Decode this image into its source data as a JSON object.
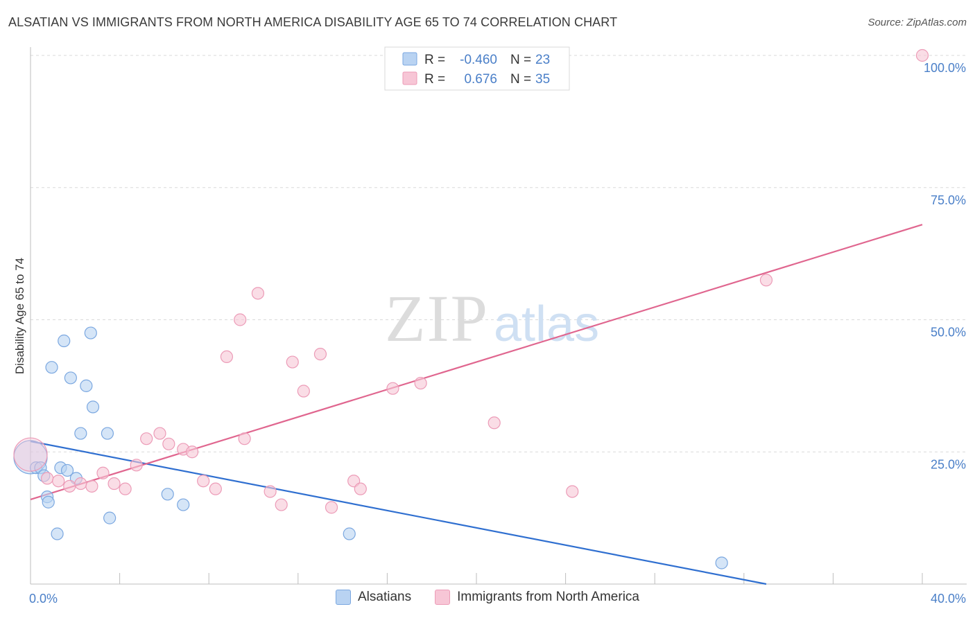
{
  "header": {
    "title": "ALSATIAN VS IMMIGRANTS FROM NORTH AMERICA DISABILITY AGE 65 TO 74 CORRELATION CHART",
    "source": "Source: ZipAtlas.com"
  },
  "watermark": {
    "zip": "ZIP",
    "atlas": "atlas"
  },
  "legend": {
    "rows": [
      {
        "r_label": "R =",
        "r_value": "-0.460",
        "n_label": "N =",
        "n_value": "23"
      },
      {
        "r_label": "R =",
        "r_value": "0.676",
        "n_label": "N =",
        "n_value": "35"
      }
    ]
  },
  "bottom_legend": {
    "series_a": "Alsatians",
    "series_b": "Immigrants from North America"
  },
  "colors": {
    "blue_fill": "#b9d3f2",
    "blue_stroke": "#7aa7e0",
    "blue_line": "#2f6fd0",
    "pink_fill": "#f7c6d6",
    "pink_stroke": "#ec9bb7",
    "pink_line": "#e0668f",
    "tick": "#4a7fc8"
  },
  "chart_data": {
    "type": "scatter",
    "title": "ALSATIAN VS IMMIGRANTS FROM NORTH AMERICA DISABILITY AGE 65 TO 74 CORRELATION CHART",
    "xlabel": "",
    "ylabel": "Disability Age 65 to 74",
    "xlim": [
      0,
      40
    ],
    "ylim": [
      0,
      100
    ],
    "x_tick_labels": [
      "0.0%",
      "40.0%"
    ],
    "y_ticks": [
      25,
      50,
      75,
      100
    ],
    "y_tick_labels": [
      "25.0%",
      "50.0%",
      "75.0%",
      "100.0%"
    ],
    "grid": true,
    "series": [
      {
        "name": "Alsatians",
        "r": -0.46,
        "n": 23,
        "trend": {
          "x": [
            0,
            33
          ],
          "y": [
            27,
            0
          ]
        },
        "points": [
          {
            "x": 0.0,
            "y": 24.0,
            "big": true
          },
          {
            "x": 0.25,
            "y": 22.0
          },
          {
            "x": 0.45,
            "y": 22.0
          },
          {
            "x": 0.6,
            "y": 20.5
          },
          {
            "x": 0.75,
            "y": 16.5
          },
          {
            "x": 0.8,
            "y": 15.5
          },
          {
            "x": 0.95,
            "y": 41.0
          },
          {
            "x": 1.2,
            "y": 9.5
          },
          {
            "x": 1.35,
            "y": 22.0
          },
          {
            "x": 1.5,
            "y": 46.0
          },
          {
            "x": 1.65,
            "y": 21.5
          },
          {
            "x": 1.8,
            "y": 39.0
          },
          {
            "x": 2.05,
            "y": 20.0
          },
          {
            "x": 2.25,
            "y": 28.5
          },
          {
            "x": 2.5,
            "y": 37.5
          },
          {
            "x": 2.7,
            "y": 47.5
          },
          {
            "x": 2.8,
            "y": 33.5
          },
          {
            "x": 3.45,
            "y": 28.5
          },
          {
            "x": 3.55,
            "y": 12.5
          },
          {
            "x": 6.15,
            "y": 17.0
          },
          {
            "x": 6.85,
            "y": 15.0
          },
          {
            "x": 14.3,
            "y": 9.5
          },
          {
            "x": 31.0,
            "y": 4.0
          }
        ]
      },
      {
        "name": "Immigrants from North America",
        "r": 0.676,
        "n": 35,
        "trend": {
          "x": [
            0,
            40
          ],
          "y": [
            16,
            68
          ]
        },
        "points": [
          {
            "x": 0.0,
            "y": 24.5,
            "big": true
          },
          {
            "x": 0.75,
            "y": 20.0
          },
          {
            "x": 1.25,
            "y": 19.5
          },
          {
            "x": 1.75,
            "y": 18.5
          },
          {
            "x": 2.25,
            "y": 19.0
          },
          {
            "x": 2.75,
            "y": 18.5
          },
          {
            "x": 3.25,
            "y": 21.0
          },
          {
            "x": 3.75,
            "y": 19.0
          },
          {
            "x": 4.25,
            "y": 18.0
          },
          {
            "x": 4.75,
            "y": 22.5
          },
          {
            "x": 5.2,
            "y": 27.5
          },
          {
            "x": 5.8,
            "y": 28.5
          },
          {
            "x": 6.2,
            "y": 26.5
          },
          {
            "x": 6.85,
            "y": 25.5
          },
          {
            "x": 7.25,
            "y": 25.0
          },
          {
            "x": 7.75,
            "y": 19.5
          },
          {
            "x": 8.3,
            "y": 18.0
          },
          {
            "x": 8.8,
            "y": 43.0
          },
          {
            "x": 9.4,
            "y": 50.0
          },
          {
            "x": 9.6,
            "y": 27.5
          },
          {
            "x": 10.2,
            "y": 55.0
          },
          {
            "x": 10.75,
            "y": 17.5
          },
          {
            "x": 11.25,
            "y": 15.0
          },
          {
            "x": 11.75,
            "y": 42.0
          },
          {
            "x": 12.25,
            "y": 36.5
          },
          {
            "x": 13.0,
            "y": 43.5
          },
          {
            "x": 13.5,
            "y": 14.5
          },
          {
            "x": 14.5,
            "y": 19.5
          },
          {
            "x": 14.8,
            "y": 18.0
          },
          {
            "x": 16.25,
            "y": 37.0
          },
          {
            "x": 17.5,
            "y": 38.0
          },
          {
            "x": 20.8,
            "y": 30.5
          },
          {
            "x": 24.3,
            "y": 17.5
          },
          {
            "x": 33.0,
            "y": 57.5
          },
          {
            "x": 40.0,
            "y": 100.0
          }
        ]
      }
    ]
  }
}
